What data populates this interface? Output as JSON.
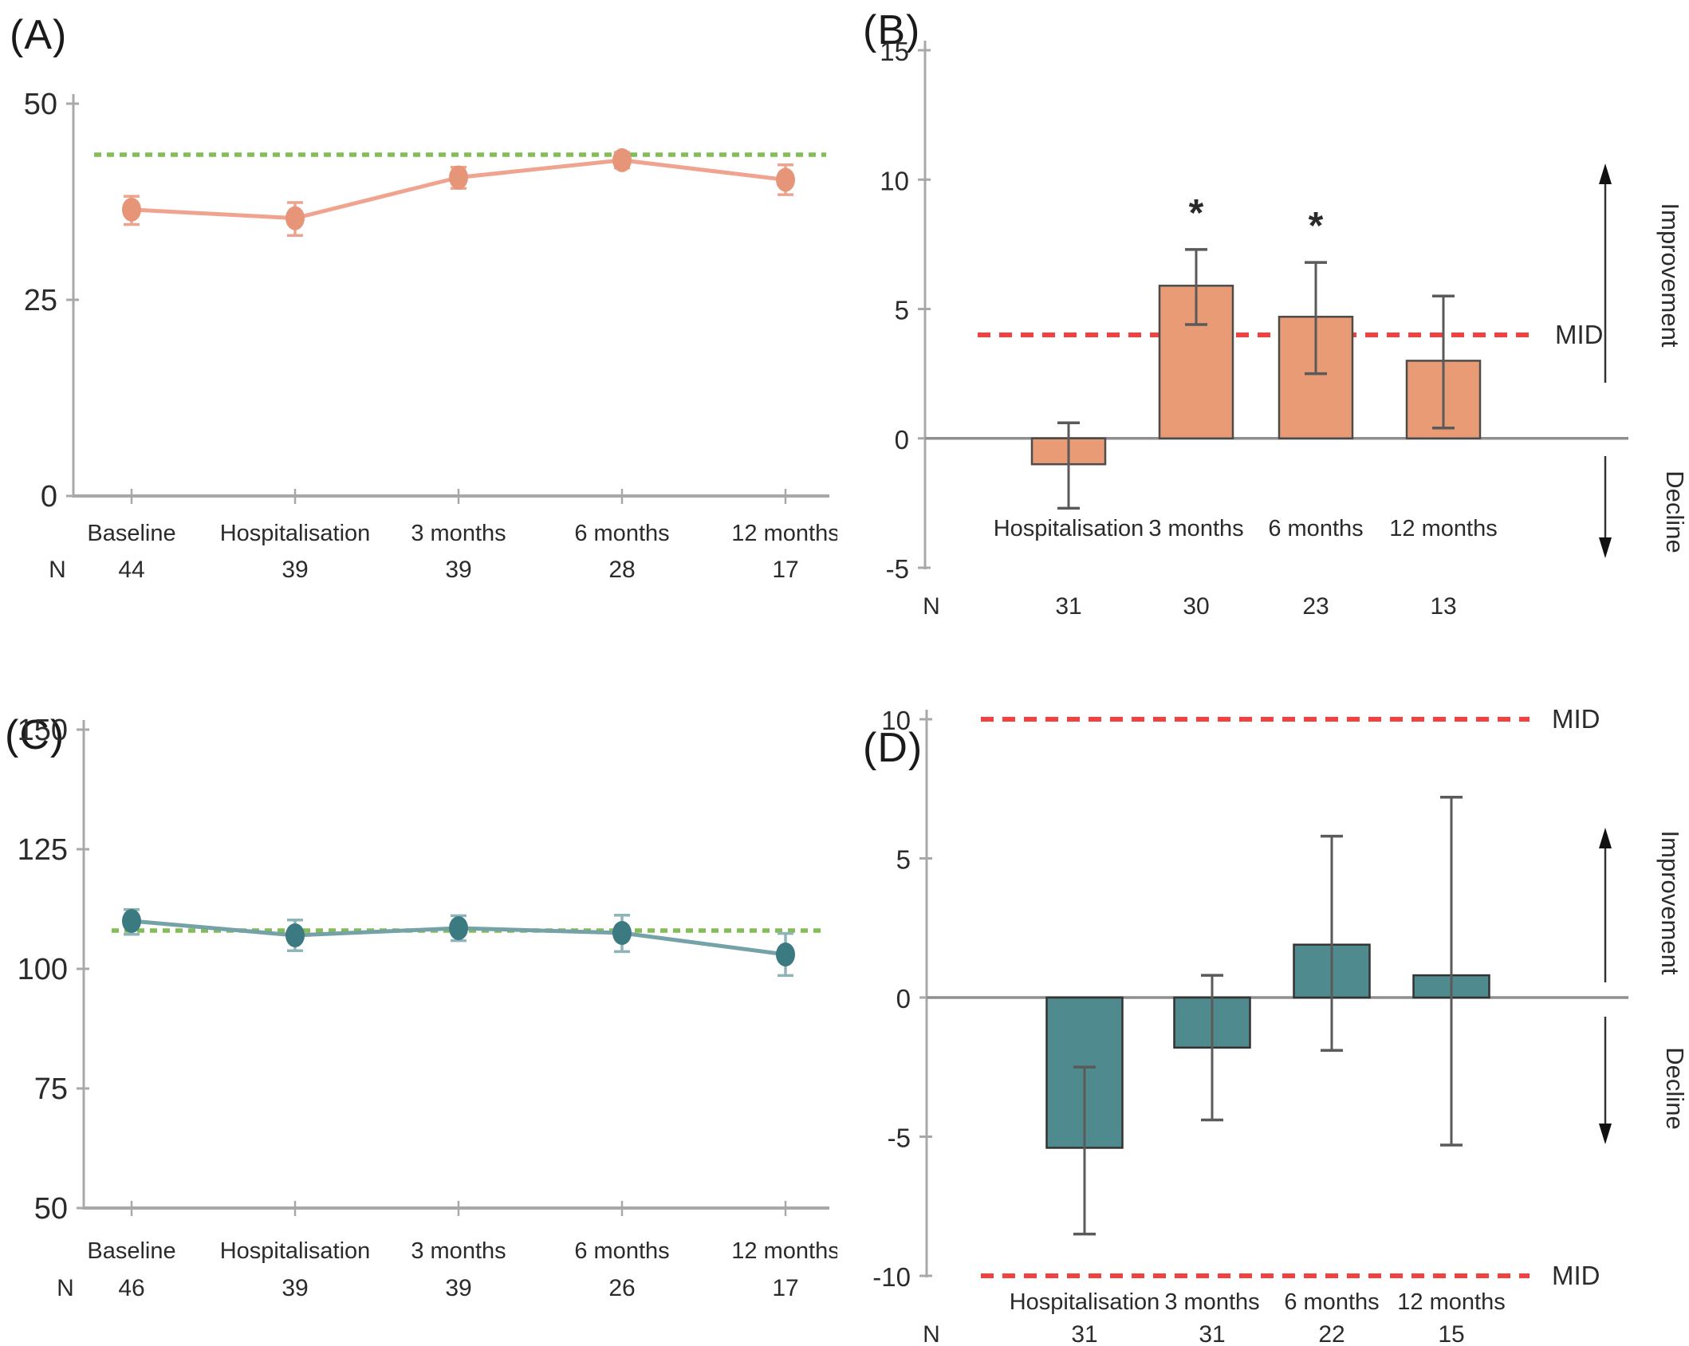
{
  "figure": {
    "background": "#ffffff",
    "text_color": "#2b2b2b",
    "axis_color": "#a8a8a8",
    "errorbar_color": "#5a5a5a",
    "red_dashed_color": "#f4403f",
    "green_dashed_color": "#84bc55"
  },
  "chart_data": [
    {
      "panel_label": "(A)",
      "type": "line",
      "categories": [
        "Baseline",
        "Hospitalisation",
        "3 months",
        "6 months",
        "12 months"
      ],
      "n_label": "N",
      "n_values": [
        "44",
        "39",
        "39",
        "28",
        "17"
      ],
      "values": [
        36.5,
        35.4,
        40.6,
        42.8,
        40.3
      ],
      "err_lo": [
        34.6,
        33.2,
        39.2,
        41.8,
        38.4
      ],
      "err_hi": [
        38.2,
        37.4,
        41.9,
        43.8,
        42.2
      ],
      "ylim": [
        0,
        50
      ],
      "yticks": [
        0,
        25,
        50
      ],
      "ref_line": {
        "value": 43.5,
        "color": "#84bc55"
      },
      "series_color": "#f0a38e",
      "marker_color": "#e79579",
      "errbar_color": "#eda38f",
      "legend_position": "none",
      "grid": false
    },
    {
      "panel_label": "(B)",
      "type": "bar",
      "categories": [
        "Hospitalisation",
        "3 months",
        "6 months",
        "12 months"
      ],
      "n_label": "N",
      "n_values": [
        "31",
        "30",
        "23",
        "13"
      ],
      "values": [
        -1.0,
        5.9,
        4.7,
        3.0
      ],
      "err_lo": [
        -2.7,
        4.4,
        2.5,
        0.4
      ],
      "err_hi": [
        0.6,
        7.3,
        6.8,
        5.5
      ],
      "significance": [
        "",
        "*",
        "*",
        ""
      ],
      "ylim": [
        -5,
        15
      ],
      "yticks": [
        -5,
        0,
        5,
        10,
        15
      ],
      "mid_lines": [
        {
          "value": 4,
          "label": "MID"
        }
      ],
      "bar_color": "#e89b74",
      "bar_border": "#4c4c4c",
      "improvement_label": "Improvement",
      "decline_label": "Decline",
      "grid": false
    },
    {
      "panel_label": "(C)",
      "type": "line",
      "categories": [
        "Baseline",
        "Hospitalisation",
        "3 months",
        "6 months",
        "12 months"
      ],
      "n_label": "N",
      "n_values": [
        "46",
        "39",
        "39",
        "26",
        "17"
      ],
      "values": [
        110,
        107,
        108.5,
        107.5,
        103
      ],
      "err_lo": [
        107.2,
        103.8,
        105.9,
        103.6,
        98.6
      ],
      "err_hi": [
        112.4,
        110.2,
        111.1,
        111.2,
        107.4
      ],
      "ylim": [
        50,
        150
      ],
      "yticks": [
        50,
        75,
        100,
        125,
        150
      ],
      "ref_line": {
        "value": 108,
        "color": "#84bc55"
      },
      "series_color": "#74a2a7",
      "marker_color": "#3c7a82",
      "errbar_color": "#8fb4b8",
      "legend_position": "none",
      "grid": false
    },
    {
      "panel_label": "(D)",
      "type": "bar",
      "categories": [
        "Hospitalisation",
        "3 months",
        "6 months",
        "12 months"
      ],
      "n_label": "N",
      "n_values": [
        "31",
        "31",
        "22",
        "15"
      ],
      "values": [
        -5.4,
        -1.8,
        1.9,
        0.8
      ],
      "err_lo": [
        -8.5,
        -4.4,
        -1.9,
        -5.3
      ],
      "err_hi": [
        -2.5,
        0.8,
        5.8,
        7.2
      ],
      "significance": [
        "",
        "",
        "",
        ""
      ],
      "ylim": [
        -10,
        10
      ],
      "yticks": [
        -10,
        -5,
        0,
        5,
        10
      ],
      "mid_lines": [
        {
          "value": 10,
          "label": "MID"
        },
        {
          "value": -10,
          "label": "MID"
        }
      ],
      "bar_color": "#4f8a8e",
      "bar_border": "#333333",
      "improvement_label": "Improvement",
      "decline_label": "Decline",
      "grid": false
    }
  ]
}
